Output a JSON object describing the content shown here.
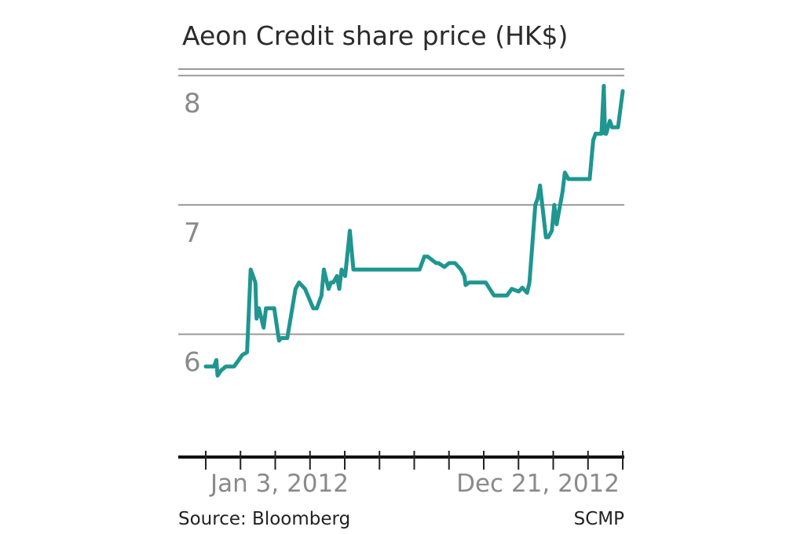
{
  "chart_data": {
    "type": "line",
    "title": "Aeon Credit share price (HK$)",
    "xlabel": "",
    "ylabel": "",
    "x_tick_labels": [
      "Jan 3, 2012",
      "Dec 21, 2012"
    ],
    "y_ticks": [
      6,
      7,
      8
    ],
    "ylim": [
      5.05,
      8.05
    ],
    "grid": true,
    "source": "Source: Bloomberg",
    "credit": "SCMP",
    "series": [
      {
        "color": "#1f9690",
        "x": [
          "2012-01-03",
          "2012-01-10",
          "2012-01-12",
          "2012-01-13",
          "2012-01-16",
          "2012-01-20",
          "2012-01-27",
          "2012-02-03",
          "2012-02-07",
          "2012-02-10",
          "2012-02-14",
          "2012-02-15",
          "2012-02-17",
          "2012-02-21",
          "2012-02-23",
          "2012-02-24",
          "2012-03-01",
          "2012-03-05",
          "2012-03-07",
          "2012-03-12",
          "2012-03-19",
          "2012-03-22",
          "2012-03-27",
          "2012-04-03",
          "2012-04-06",
          "2012-04-10",
          "2012-04-12",
          "2012-04-16",
          "2012-04-18",
          "2012-04-20",
          "2012-04-23",
          "2012-04-25",
          "2012-04-27",
          "2012-04-30",
          "2012-05-04",
          "2012-05-07",
          "2012-05-11",
          "2012-05-14",
          "2012-05-16",
          "2012-05-21",
          "2012-05-23",
          "2012-06-11",
          "2012-07-02",
          "2012-07-06",
          "2012-07-09",
          "2012-07-16",
          "2012-07-18",
          "2012-07-23",
          "2012-07-27",
          "2012-08-01",
          "2012-08-06",
          "2012-08-09",
          "2012-08-10",
          "2012-08-13",
          "2012-08-27",
          "2012-09-03",
          "2012-09-06",
          "2012-09-14",
          "2012-09-18",
          "2012-09-24",
          "2012-09-27",
          "2012-10-01",
          "2012-10-03",
          "2012-10-08",
          "2012-10-10",
          "2012-10-12",
          "2012-10-17",
          "2012-10-19",
          "2012-10-22",
          "2012-10-24",
          "2012-10-26",
          "2012-10-29",
          "2012-10-31",
          "2012-11-02",
          "2012-11-05",
          "2012-11-07",
          "2012-11-23",
          "2012-11-26",
          "2012-11-28",
          "2012-12-03",
          "2012-12-05",
          "2012-12-06",
          "2012-12-07",
          "2012-12-10",
          "2012-12-12",
          "2012-12-14",
          "2012-12-17",
          "2012-12-21"
        ],
        "values": [
          5.75,
          5.75,
          5.8,
          5.68,
          5.72,
          5.75,
          5.75,
          5.84,
          5.86,
          6.5,
          6.4,
          6.12,
          6.2,
          6.05,
          6.2,
          6.2,
          6.2,
          5.95,
          5.97,
          5.97,
          6.35,
          6.4,
          6.35,
          6.2,
          6.2,
          6.3,
          6.5,
          6.35,
          6.4,
          6.4,
          6.45,
          6.35,
          6.5,
          6.45,
          6.8,
          6.5,
          6.5,
          6.5,
          6.5,
          6.5,
          6.5,
          6.5,
          6.5,
          6.6,
          6.6,
          6.55,
          6.55,
          6.52,
          6.55,
          6.55,
          6.5,
          6.45,
          6.38,
          6.4,
          6.4,
          6.3,
          6.3,
          6.3,
          6.35,
          6.33,
          6.36,
          6.32,
          6.4,
          7.0,
          7.05,
          7.15,
          6.75,
          6.75,
          6.8,
          7.0,
          6.85,
          7.0,
          7.1,
          7.25,
          7.2,
          7.2,
          7.2,
          7.5,
          7.55,
          7.55,
          7.92,
          7.55,
          7.55,
          7.65,
          7.6,
          7.6,
          7.6,
          7.88
        ]
      }
    ]
  }
}
